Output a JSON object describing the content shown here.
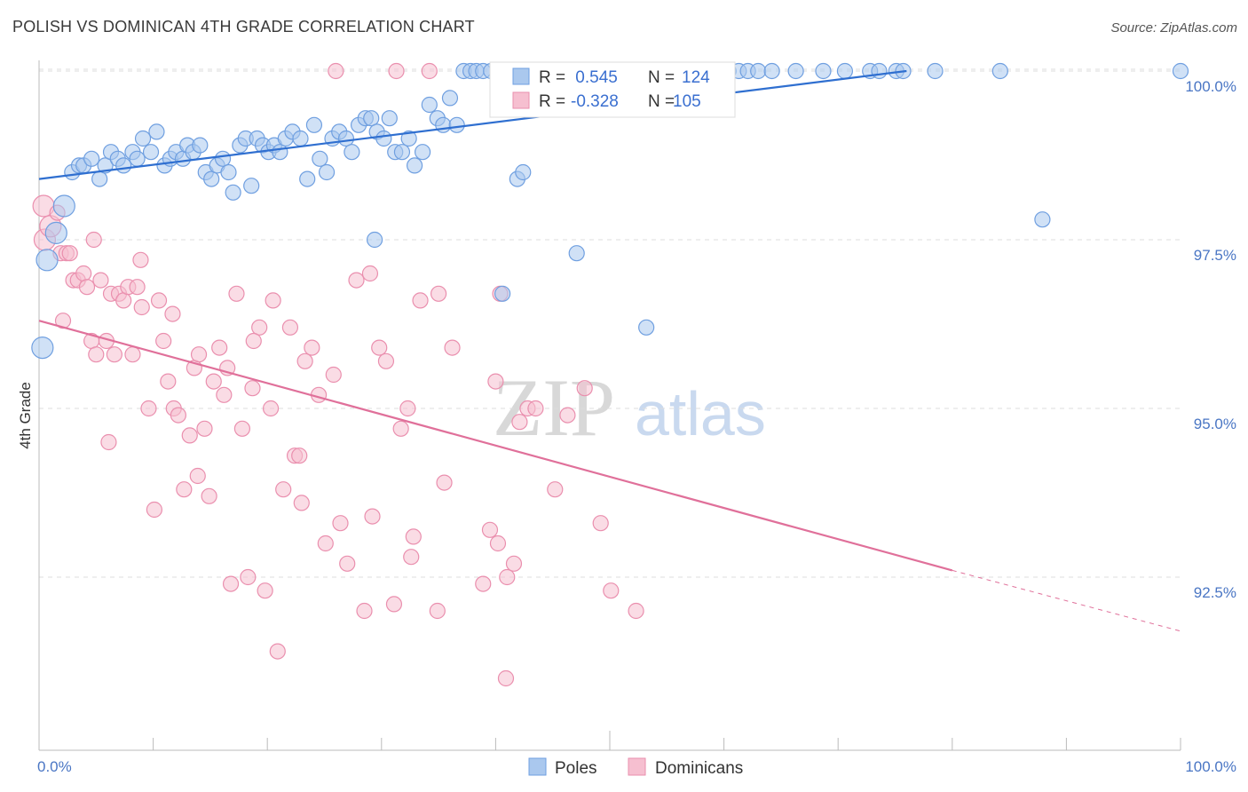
{
  "title": "POLISH VS DOMINICAN 4TH GRADE CORRELATION CHART",
  "source": "Source: ZipAtlas.com",
  "watermark": {
    "zip": "ZIP",
    "atlas": "atlas"
  },
  "colors": {
    "poles_fill": "#aac8ee",
    "poles_stroke": "#6f9fe0",
    "poles_line": "#2f6fd0",
    "dom_fill": "#f6bfd0",
    "dom_stroke": "#ea8fae",
    "dom_line": "#e0709a",
    "grid": "#dddddd",
    "tick_text": "#4a76c4"
  },
  "legend": {
    "rows": [
      {
        "r_label": "R =",
        "r_value": " 0.545",
        "n_label": "N =",
        "n_value": "124"
      },
      {
        "r_label": "R =",
        "r_value": "-0.328",
        "n_label": "N =",
        "n_value": "105"
      }
    ]
  },
  "chart_data": {
    "type": "scatter",
    "title": "POLISH VS DOMINICAN 4TH GRADE CORRELATION CHART",
    "xlabel": "",
    "ylabel": "4th Grade",
    "xlim": [
      0,
      100
    ],
    "ylim": [
      90.0,
      100.4
    ],
    "x_tick_labels": [
      "0.0%",
      "100.0%"
    ],
    "y_ticks": [
      92.5,
      95.0,
      97.5,
      100.0
    ],
    "y_tick_labels": [
      "92.5%",
      "95.0%",
      "97.5%",
      "100.0%"
    ],
    "grid": true,
    "legend_position": "top-center",
    "series": [
      {
        "name": "Poles",
        "r": 0.545,
        "n": 124,
        "trend": {
          "x0": 0,
          "y0": 98.4,
          "x1": 76,
          "y1": 100.0
        },
        "points": [
          [
            0.7,
            97.2
          ],
          [
            0.3,
            95.9
          ],
          [
            1.5,
            97.6
          ],
          [
            2.2,
            98.0
          ],
          [
            2.9,
            98.5
          ],
          [
            3.5,
            98.6
          ],
          [
            3.9,
            98.6
          ],
          [
            4.6,
            98.7
          ],
          [
            5.3,
            98.4
          ],
          [
            5.8,
            98.6
          ],
          [
            6.3,
            98.8
          ],
          [
            6.9,
            98.7
          ],
          [
            7.4,
            98.6
          ],
          [
            8.2,
            98.8
          ],
          [
            8.6,
            98.7
          ],
          [
            9.1,
            99.0
          ],
          [
            9.8,
            98.8
          ],
          [
            10.3,
            99.1
          ],
          [
            11.0,
            98.6
          ],
          [
            11.5,
            98.7
          ],
          [
            12.0,
            98.8
          ],
          [
            12.6,
            98.7
          ],
          [
            13.0,
            98.9
          ],
          [
            13.5,
            98.8
          ],
          [
            14.1,
            98.9
          ],
          [
            14.6,
            98.5
          ],
          [
            15.1,
            98.4
          ],
          [
            15.6,
            98.6
          ],
          [
            16.1,
            98.7
          ],
          [
            16.6,
            98.5
          ],
          [
            17.0,
            98.2
          ],
          [
            17.6,
            98.9
          ],
          [
            18.1,
            99.0
          ],
          [
            18.6,
            98.3
          ],
          [
            19.1,
            99.0
          ],
          [
            19.6,
            98.9
          ],
          [
            20.1,
            98.8
          ],
          [
            20.6,
            98.9
          ],
          [
            21.1,
            98.8
          ],
          [
            21.6,
            99.0
          ],
          [
            22.2,
            99.1
          ],
          [
            22.9,
            99.0
          ],
          [
            23.5,
            98.4
          ],
          [
            24.1,
            99.2
          ],
          [
            24.6,
            98.7
          ],
          [
            25.2,
            98.5
          ],
          [
            25.7,
            99.0
          ],
          [
            26.3,
            99.1
          ],
          [
            26.9,
            99.0
          ],
          [
            27.4,
            98.8
          ],
          [
            28.0,
            99.2
          ],
          [
            28.6,
            99.3
          ],
          [
            29.1,
            99.3
          ],
          [
            29.6,
            99.1
          ],
          [
            30.2,
            99.0
          ],
          [
            30.7,
            99.3
          ],
          [
            31.2,
            98.8
          ],
          [
            31.8,
            98.8
          ],
          [
            32.4,
            99.0
          ],
          [
            32.9,
            98.6
          ],
          [
            33.6,
            98.8
          ],
          [
            34.2,
            99.5
          ],
          [
            34.9,
            99.3
          ],
          [
            35.4,
            99.2
          ],
          [
            36.0,
            99.6
          ],
          [
            36.6,
            99.2
          ],
          [
            37.2,
            100.0
          ],
          [
            37.8,
            100.0
          ],
          [
            38.3,
            100.0
          ],
          [
            38.9,
            100.0
          ],
          [
            39.6,
            100.0
          ],
          [
            40.2,
            100.0
          ],
          [
            40.8,
            100.0
          ],
          [
            41.3,
            100.0
          ],
          [
            41.9,
            98.4
          ],
          [
            42.4,
            98.5
          ],
          [
            43.1,
            100.0
          ],
          [
            43.7,
            100.0
          ],
          [
            44.2,
            100.0
          ],
          [
            44.8,
            100.0
          ],
          [
            45.3,
            100.0
          ],
          [
            45.9,
            100.0
          ],
          [
            46.5,
            100.0
          ],
          [
            47.1,
            100.0
          ],
          [
            47.6,
            100.0
          ],
          [
            48.2,
            100.0
          ],
          [
            48.7,
            100.0
          ],
          [
            49.3,
            100.0
          ],
          [
            49.9,
            100.0
          ],
          [
            50.5,
            100.0
          ],
          [
            51.1,
            100.0
          ],
          [
            51.6,
            100.0
          ],
          [
            52.2,
            100.0
          ],
          [
            52.8,
            100.0
          ],
          [
            53.4,
            100.0
          ],
          [
            54.0,
            100.0
          ],
          [
            54.5,
            100.0
          ],
          [
            55.1,
            100.0
          ],
          [
            55.7,
            100.0
          ],
          [
            56.3,
            100.0
          ],
          [
            56.9,
            100.0
          ],
          [
            57.5,
            100.0
          ],
          [
            58.3,
            100.0
          ],
          [
            59.5,
            100.0
          ],
          [
            60.4,
            100.0
          ],
          [
            61.3,
            100.0
          ],
          [
            62.1,
            100.0
          ],
          [
            63.0,
            100.0
          ],
          [
            64.2,
            100.0
          ],
          [
            66.3,
            100.0
          ],
          [
            68.7,
            100.0
          ],
          [
            70.6,
            100.0
          ],
          [
            72.8,
            100.0
          ],
          [
            73.6,
            100.0
          ],
          [
            75.1,
            100.0
          ],
          [
            75.7,
            100.0
          ],
          [
            78.5,
            100.0
          ],
          [
            84.2,
            100.0
          ],
          [
            87.9,
            97.8
          ],
          [
            100.0,
            100.0
          ],
          [
            29.4,
            97.5
          ],
          [
            40.6,
            96.7
          ],
          [
            47.1,
            97.3
          ],
          [
            53.2,
            96.2
          ]
        ]
      },
      {
        "name": "Dominicans",
        "r": -0.328,
        "n": 105,
        "trend": {
          "x0": 0,
          "y0": 96.3,
          "x1": 80,
          "y1": 92.6,
          "dash_x1": 100,
          "dash_y1": 91.7
        },
        "points": [
          [
            0.4,
            98.0
          ],
          [
            0.5,
            97.5
          ],
          [
            1.0,
            97.7
          ],
          [
            1.6,
            97.9
          ],
          [
            1.9,
            97.3
          ],
          [
            2.4,
            97.3
          ],
          [
            2.7,
            97.3
          ],
          [
            3.0,
            96.9
          ],
          [
            3.4,
            96.9
          ],
          [
            3.9,
            97.0
          ],
          [
            4.2,
            96.8
          ],
          [
            4.6,
            96.0
          ],
          [
            5.0,
            95.8
          ],
          [
            5.4,
            96.9
          ],
          [
            5.9,
            96.0
          ],
          [
            6.3,
            96.7
          ],
          [
            6.6,
            95.8
          ],
          [
            7.0,
            96.7
          ],
          [
            7.4,
            96.6
          ],
          [
            7.8,
            96.8
          ],
          [
            8.2,
            95.8
          ],
          [
            8.6,
            96.8
          ],
          [
            9.0,
            96.5
          ],
          [
            9.6,
            95.0
          ],
          [
            10.1,
            93.5
          ],
          [
            10.5,
            96.6
          ],
          [
            10.9,
            96.0
          ],
          [
            11.3,
            95.4
          ],
          [
            11.8,
            95.0
          ],
          [
            12.2,
            94.9
          ],
          [
            12.7,
            93.8
          ],
          [
            13.2,
            94.6
          ],
          [
            13.6,
            95.6
          ],
          [
            14.0,
            95.8
          ],
          [
            14.5,
            94.7
          ],
          [
            14.9,
            93.7
          ],
          [
            15.3,
            95.4
          ],
          [
            15.8,
            95.9
          ],
          [
            16.2,
            95.2
          ],
          [
            16.8,
            92.4
          ],
          [
            17.3,
            96.7
          ],
          [
            17.8,
            94.7
          ],
          [
            18.3,
            92.5
          ],
          [
            18.7,
            95.3
          ],
          [
            19.3,
            96.2
          ],
          [
            19.8,
            92.3
          ],
          [
            20.3,
            95.0
          ],
          [
            20.9,
            91.4
          ],
          [
            21.4,
            93.8
          ],
          [
            22.0,
            96.2
          ],
          [
            22.4,
            94.3
          ],
          [
            22.8,
            94.3
          ],
          [
            23.3,
            95.7
          ],
          [
            23.9,
            95.9
          ],
          [
            24.5,
            95.2
          ],
          [
            25.1,
            93.0
          ],
          [
            25.8,
            95.5
          ],
          [
            26.4,
            93.3
          ],
          [
            27.0,
            92.7
          ],
          [
            28.5,
            92.0
          ],
          [
            29.2,
            93.4
          ],
          [
            29.8,
            95.9
          ],
          [
            30.4,
            95.7
          ],
          [
            31.1,
            92.1
          ],
          [
            31.7,
            94.7
          ],
          [
            32.3,
            95.0
          ],
          [
            32.8,
            93.1
          ],
          [
            33.4,
            96.6
          ],
          [
            34.2,
            100.0
          ],
          [
            34.9,
            92.0
          ],
          [
            35.5,
            93.9
          ],
          [
            35.0,
            96.7
          ],
          [
            36.2,
            95.9
          ],
          [
            40.0,
            95.4
          ],
          [
            38.9,
            92.4
          ],
          [
            39.5,
            93.2
          ],
          [
            40.2,
            93.0
          ],
          [
            41.0,
            92.5
          ],
          [
            41.6,
            92.7
          ],
          [
            42.1,
            94.8
          ],
          [
            42.8,
            95.0
          ],
          [
            43.5,
            95.0
          ],
          [
            45.2,
            93.8
          ],
          [
            46.3,
            94.9
          ],
          [
            47.8,
            95.3
          ],
          [
            49.2,
            93.3
          ],
          [
            50.1,
            92.3
          ],
          [
            52.3,
            92.0
          ],
          [
            2.1,
            96.3
          ],
          [
            4.8,
            97.5
          ],
          [
            6.1,
            94.5
          ],
          [
            8.9,
            97.2
          ],
          [
            11.7,
            96.4
          ],
          [
            13.9,
            94.0
          ],
          [
            16.5,
            95.6
          ],
          [
            18.8,
            96.0
          ],
          [
            20.5,
            96.6
          ],
          [
            23.0,
            93.6
          ],
          [
            26.0,
            100.0
          ],
          [
            27.8,
            96.9
          ],
          [
            29.0,
            97.0
          ],
          [
            31.3,
            100.0
          ],
          [
            32.6,
            92.8
          ],
          [
            40.4,
            96.7
          ],
          [
            40.9,
            91.0
          ]
        ]
      }
    ]
  },
  "bottom_legend": [
    "Poles",
    "Dominicans"
  ]
}
